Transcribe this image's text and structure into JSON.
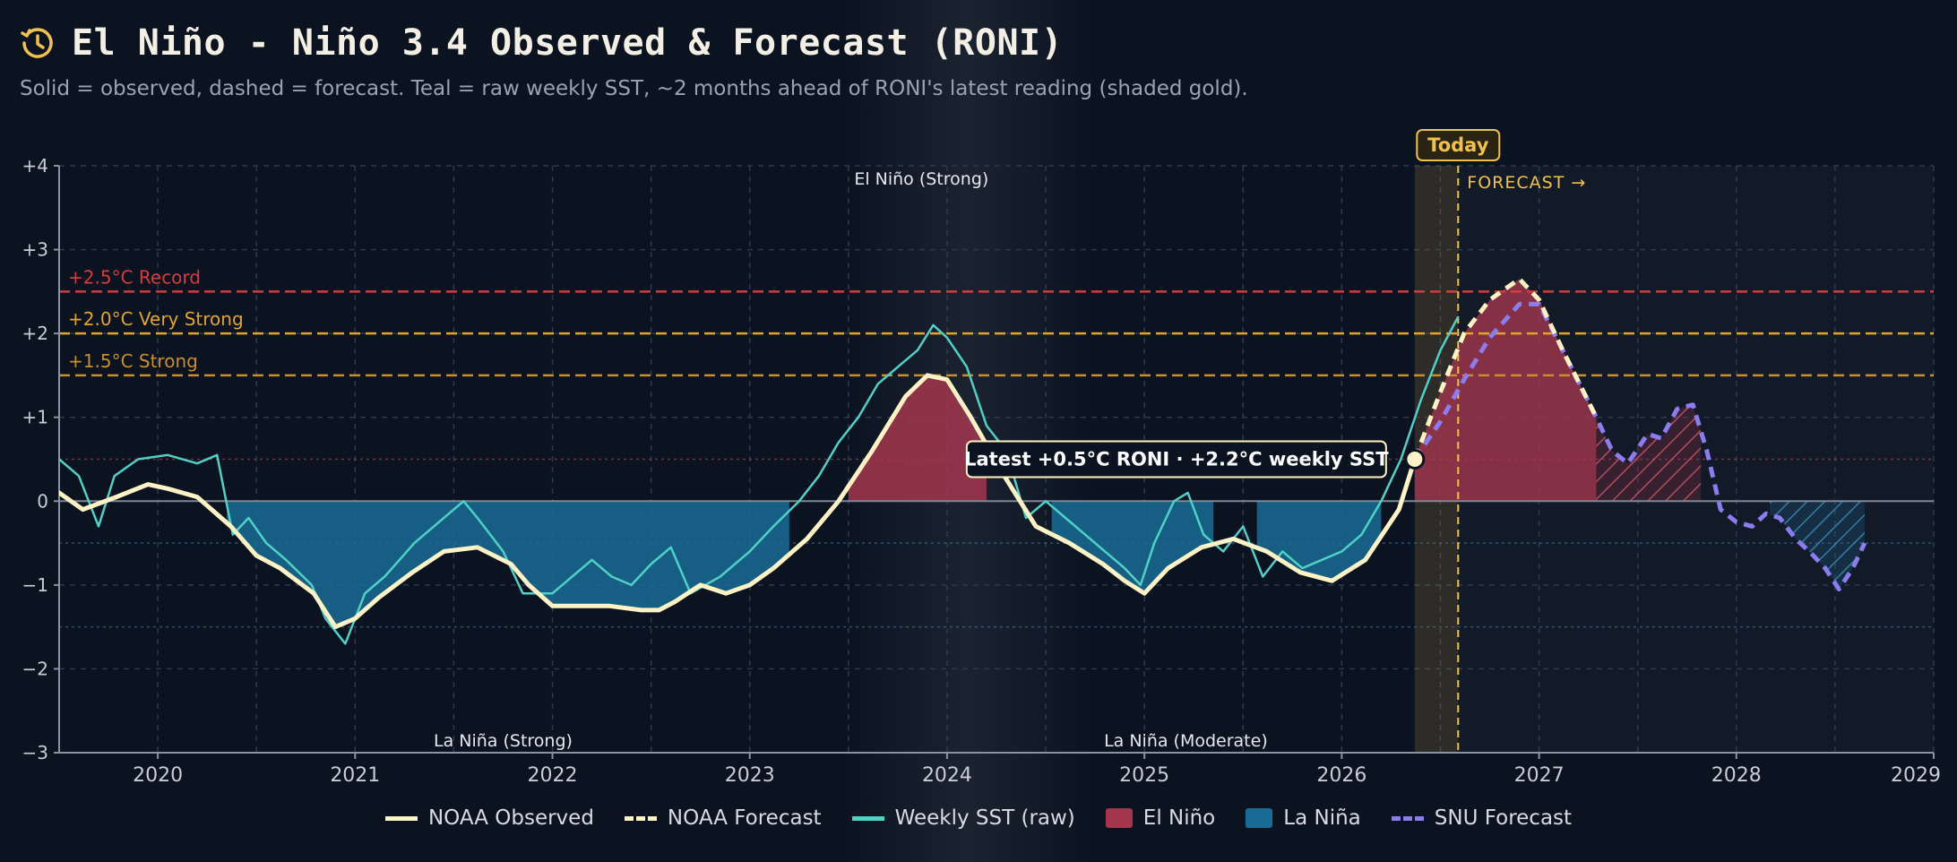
{
  "header": {
    "title": "El Niño - Niño 3.4 Observed & Forecast (RONI)",
    "subtitle": "Solid = observed, dashed = forecast. Teal = raw weekly SST, ~2 months ahead of RONI's latest reading (shaded gold).",
    "icon": "history-clock-icon"
  },
  "colors": {
    "background": "#0b1220",
    "observed": "#fdf3c6",
    "weekly": "#4fd1c5",
    "elnino": "#a3364d",
    "lanina": "#1a6c97",
    "snu": "#8b7cf0",
    "record": "#d63c3c",
    "very_strong": "#e0a52a",
    "strong": "#c98f2e",
    "today": "#f0c24c"
  },
  "chart_data": {
    "type": "line",
    "title": "El Niño - Niño 3.4 Observed & Forecast (RONI)",
    "xlabel": "",
    "ylabel": "",
    "xlim": [
      2019.5,
      2029.0
    ],
    "ylim": [
      -3,
      4
    ],
    "x_ticks": [
      2020,
      2021,
      2022,
      2023,
      2024,
      2025,
      2026,
      2027,
      2028,
      2029
    ],
    "y_ticks": [
      {
        "v": 4,
        "label": "+4"
      },
      {
        "v": 3,
        "label": "+3"
      },
      {
        "v": 2,
        "label": "+2"
      },
      {
        "v": 1,
        "label": "+1"
      },
      {
        "v": 0,
        "label": "0"
      },
      {
        "v": -1,
        "label": "−1"
      },
      {
        "v": -2,
        "label": "−2"
      },
      {
        "v": -3,
        "label": "−3"
      }
    ],
    "grid": true,
    "thresholds": [
      {
        "value": 2.5,
        "label": "+2.5°C Record",
        "color": "#d63c3c"
      },
      {
        "value": 2.0,
        "label": "+2.0°C Very Strong",
        "color": "#e0a52a"
      },
      {
        "value": 1.5,
        "label": "+1.5°C Strong",
        "color": "#c98f2e"
      }
    ],
    "dotted_lines": [
      0.5,
      -0.5,
      -1.5
    ],
    "annotations": {
      "event_labels": [
        {
          "x": 2023.87,
          "y": 3.85,
          "text": "El Niño (Strong)"
        },
        {
          "x": 2021.75,
          "y": -2.85,
          "text": "La Niña (Strong)"
        },
        {
          "x": 2025.21,
          "y": -2.85,
          "text": "La Niña (Moderate)"
        }
      ],
      "today_label": "Today",
      "today_x": 2026.59,
      "forecast_label": "FORECAST →",
      "latest_window": [
        2026.37,
        2026.59
      ],
      "latest_label": "Latest +0.5°C RONI · +2.2°C weekly SST",
      "latest_point": {
        "x": 2026.37,
        "y": 0.5
      }
    },
    "series": [
      {
        "name": "NOAA Observed",
        "x": [
          2019.5,
          2019.62,
          2019.79,
          2019.95,
          2020.05,
          2020.2,
          2020.37,
          2020.5,
          2020.62,
          2020.79,
          2020.9,
          2021.0,
          2021.12,
          2021.29,
          2021.45,
          2021.62,
          2021.79,
          2021.88,
          2022.0,
          2022.12,
          2022.29,
          2022.45,
          2022.54,
          2022.62,
          2022.75,
          2022.88,
          2023.0,
          2023.12,
          2023.29,
          2023.45,
          2023.62,
          2023.79,
          2023.9,
          2024.0,
          2024.12,
          2024.29,
          2024.45,
          2024.62,
          2024.79,
          2024.9,
          2025.0,
          2025.12,
          2025.29,
          2025.45,
          2025.62,
          2025.79,
          2025.95,
          2026.12,
          2026.29,
          2026.37
        ],
        "y": [
          0.1,
          -0.1,
          0.05,
          0.2,
          0.15,
          0.05,
          -0.3,
          -0.65,
          -0.8,
          -1.1,
          -1.5,
          -1.4,
          -1.15,
          -0.85,
          -0.6,
          -0.55,
          -0.75,
          -1.0,
          -1.25,
          -1.25,
          -1.25,
          -1.3,
          -1.3,
          -1.2,
          -1.0,
          -1.1,
          -1.0,
          -0.8,
          -0.45,
          0.0,
          0.6,
          1.25,
          1.5,
          1.45,
          1.0,
          0.3,
          -0.3,
          -0.5,
          -0.75,
          -0.95,
          -1.1,
          -0.8,
          -0.55,
          -0.45,
          -0.6,
          -0.85,
          -0.95,
          -0.7,
          -0.1,
          0.5
        ]
      },
      {
        "name": "NOAA Forecast",
        "x": [
          2026.37,
          2026.5,
          2026.62,
          2026.75,
          2026.9,
          2027.0,
          2027.12,
          2027.29
        ],
        "y": [
          0.5,
          1.3,
          2.0,
          2.4,
          2.65,
          2.4,
          1.8,
          1.0
        ]
      },
      {
        "name": "Weekly SST (raw)",
        "x": [
          2019.5,
          2019.6,
          2019.7,
          2019.78,
          2019.9,
          2020.05,
          2020.2,
          2020.3,
          2020.38,
          2020.46,
          2020.55,
          2020.65,
          2020.78,
          2020.85,
          2020.95,
          2021.05,
          2021.15,
          2021.3,
          2021.5,
          2021.55,
          2021.62,
          2021.75,
          2021.85,
          2022.0,
          2022.1,
          2022.2,
          2022.3,
          2022.4,
          2022.5,
          2022.6,
          2022.7,
          2022.85,
          2023.0,
          2023.12,
          2023.25,
          2023.35,
          2023.45,
          2023.55,
          2023.65,
          2023.75,
          2023.85,
          2023.93,
          2024.0,
          2024.1,
          2024.2,
          2024.3,
          2024.4,
          2024.5,
          2024.6,
          2024.7,
          2024.8,
          2024.9,
          2024.98,
          2025.05,
          2025.15,
          2025.22,
          2025.3,
          2025.4,
          2025.5,
          2025.6,
          2025.7,
          2025.8,
          2025.9,
          2026.0,
          2026.1,
          2026.2,
          2026.3,
          2026.4,
          2026.5,
          2026.59
        ],
        "y": [
          0.5,
          0.3,
          -0.3,
          0.3,
          0.5,
          0.55,
          0.45,
          0.55,
          -0.4,
          -0.2,
          -0.5,
          -0.7,
          -1.0,
          -1.4,
          -1.7,
          -1.1,
          -0.9,
          -0.5,
          -0.1,
          0.0,
          -0.2,
          -0.6,
          -1.1,
          -1.1,
          -0.9,
          -0.7,
          -0.9,
          -1.0,
          -0.75,
          -0.55,
          -1.1,
          -0.9,
          -0.6,
          -0.3,
          0.0,
          0.3,
          0.7,
          1.0,
          1.4,
          1.6,
          1.8,
          2.1,
          1.95,
          1.6,
          0.9,
          0.6,
          -0.2,
          0.0,
          -0.2,
          -0.4,
          -0.6,
          -0.8,
          -1.0,
          -0.5,
          0.0,
          0.1,
          -0.4,
          -0.6,
          -0.3,
          -0.9,
          -0.6,
          -0.8,
          -0.7,
          -0.6,
          -0.4,
          0.0,
          0.5,
          1.2,
          1.8,
          2.2
        ]
      },
      {
        "name": "SNU Forecast",
        "x": [
          2026.37,
          2026.5,
          2026.62,
          2026.75,
          2026.9,
          2027.0,
          2027.12,
          2027.29,
          2027.37,
          2027.45,
          2027.55,
          2027.62,
          2027.7,
          2027.78,
          2027.85,
          2027.92,
          2028.0,
          2028.08,
          2028.15,
          2028.22,
          2028.3,
          2028.37,
          2028.45,
          2028.52,
          2028.59,
          2028.65
        ],
        "y": [
          0.5,
          0.95,
          1.45,
          1.95,
          2.35,
          2.35,
          1.8,
          1.0,
          0.6,
          0.45,
          0.8,
          0.75,
          1.1,
          1.15,
          0.6,
          -0.1,
          -0.25,
          -0.3,
          -0.15,
          -0.2,
          -0.45,
          -0.6,
          -0.8,
          -1.05,
          -0.8,
          -0.5
        ]
      }
    ],
    "legend": {
      "position": "bottom",
      "entries": [
        {
          "name": "NOAA Observed",
          "kind": "solid",
          "color": "#fdf3c6"
        },
        {
          "name": "NOAA Forecast",
          "kind": "dashed",
          "color": "#fdf3c6"
        },
        {
          "name": "Weekly SST (raw)",
          "kind": "solid",
          "color": "#4fd1c5"
        },
        {
          "name": "El Niño",
          "kind": "box",
          "color": "#a3364d"
        },
        {
          "name": "La Niña",
          "kind": "box",
          "color": "#1a6c97"
        },
        {
          "name": "SNU Forecast",
          "kind": "dashed",
          "color": "#8b7cf0"
        }
      ]
    }
  }
}
